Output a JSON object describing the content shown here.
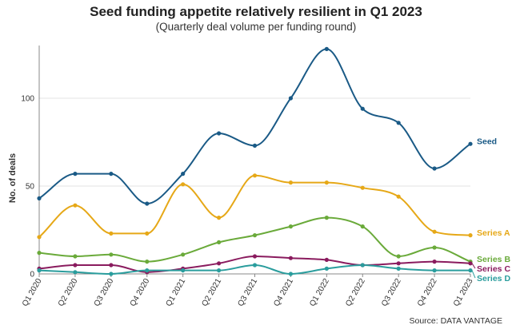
{
  "chart_data": {
    "type": "line",
    "title": "Seed funding appetite relatively resilient in Q1 2023",
    "subtitle": "(Quarterly deal volume per funding round)",
    "xlabel": "",
    "ylabel": "No. of deals",
    "ylim": [
      0,
      130
    ],
    "yticks": [
      0,
      50,
      100
    ],
    "grid": true,
    "categories": [
      "Q1 2020",
      "Q2 2020",
      "Q3 2020",
      "Q4 2020",
      "Q1 2021",
      "Q2 2021",
      "Q3 2021",
      "Q4 2021",
      "Q1 2022",
      "Q2 2022",
      "Q3 2022",
      "Q4 2022",
      "Q1 2023"
    ],
    "series": [
      {
        "name": "Seed",
        "color": "#1a5a86",
        "values": [
          43,
          57,
          57,
          40,
          57,
          80,
          73,
          100,
          128,
          94,
          86,
          60,
          74
        ]
      },
      {
        "name": "Series A",
        "color": "#e6a817",
        "values": [
          21,
          39,
          23,
          23,
          51,
          32,
          56,
          52,
          52,
          49,
          44,
          24,
          22
        ]
      },
      {
        "name": "Series B",
        "color": "#6aaa3a",
        "values": [
          12,
          10,
          11,
          7,
          11,
          18,
          22,
          27,
          32,
          27,
          10,
          15,
          7
        ]
      },
      {
        "name": "Series C",
        "color": "#8a1b5e",
        "values": [
          3,
          5,
          5,
          1,
          3,
          6,
          10,
          9,
          8,
          5,
          6,
          7,
          6
        ]
      },
      {
        "name": "Series D",
        "color": "#2a9d9d",
        "values": [
          2,
          1,
          0,
          2,
          2,
          2,
          5,
          0,
          3,
          5,
          3,
          2,
          2
        ]
      }
    ],
    "source": "Source: DATA VANTAGE"
  }
}
